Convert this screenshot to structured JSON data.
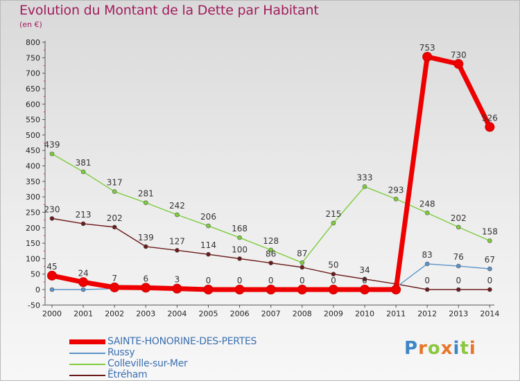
{
  "title": "Evolution du Montant de la Dette par Habitant",
  "subtitle": "(en €)",
  "logo_text": "Proxiti",
  "chart_data": {
    "type": "line",
    "title": "Evolution du Montant de la Dette par Habitant",
    "ylabel": "(en €)",
    "xlabel": "",
    "categories": [
      "2000",
      "2001",
      "2002",
      "2003",
      "2004",
      "2005",
      "2006",
      "2007",
      "2008",
      "2009",
      "2010",
      "2011",
      "2012",
      "2013",
      "2014"
    ],
    "ylim": [
      -50,
      800
    ],
    "yticks": [
      -50,
      0,
      50,
      100,
      150,
      200,
      250,
      300,
      350,
      400,
      450,
      500,
      550,
      600,
      650,
      700,
      750,
      800
    ],
    "grid": false,
    "legend_position": "bottom-left",
    "series": [
      {
        "name": "Ëtréham",
        "color": "#6b1a1a",
        "values": [
          230,
          213,
          202,
          139,
          127,
          114,
          100,
          86,
          72,
          50,
          34,
          18,
          0,
          0,
          0
        ],
        "labels": [
          "230",
          "213",
          "202",
          "139",
          "127",
          "114",
          "100",
          "86",
          "",
          "50",
          "34",
          "",
          "0",
          "0",
          "0"
        ]
      },
      {
        "name": "Colleville-sur-Mer",
        "color": "#7dcc3c",
        "values": [
          439,
          381,
          317,
          281,
          242,
          206,
          168,
          128,
          87,
          215,
          333,
          293,
          248,
          202,
          158
        ],
        "labels": [
          "439",
          "381",
          "317",
          "281",
          "242",
          "206",
          "168",
          "128",
          "87",
          "215",
          "333",
          "293",
          "248",
          "202",
          "158"
        ]
      },
      {
        "name": "Russy",
        "color": "#5a93c8",
        "values": [
          0,
          0,
          3,
          3,
          2,
          0,
          0,
          0,
          0,
          0,
          5,
          7,
          83,
          76,
          67
        ],
        "labels": [
          "",
          "",
          "",
          "",
          "",
          "",
          "",
          "",
          "",
          "",
          "",
          "",
          "83",
          "76",
          "67"
        ]
      },
      {
        "name": "SAINTE-HONORINE-DES-PERTES",
        "color": "#ee0000",
        "values": [
          45,
          24,
          7,
          6,
          3,
          0,
          0,
          0,
          0,
          0,
          0,
          0,
          753,
          730,
          526
        ],
        "labels": [
          "45",
          "24",
          "7",
          "6",
          "3",
          "0",
          "0",
          "0",
          "0",
          "0",
          "0",
          "",
          "753",
          "730",
          "526"
        ]
      }
    ],
    "extra_labels": [
      "0",
      "0",
      "0",
      "0",
      "0",
      "0",
      "0",
      "0",
      "0",
      "0",
      "0",
      "0",
      "0",
      "0",
      "0",
      "0",
      "0",
      "0",
      "0"
    ]
  },
  "legend": [
    {
      "name": "SAINTE-HONORINE-DES-PERTES",
      "color": "#ee0000",
      "thickness": "bold"
    },
    {
      "name": "Russy",
      "color": "#5a93c8",
      "thickness": "thin"
    },
    {
      "name": "Colleville-sur-Mer",
      "color": "#7dcc3c",
      "thickness": "thin"
    },
    {
      "name": "Ëtréham",
      "color": "#6b1a1a",
      "thickness": "thin"
    }
  ]
}
